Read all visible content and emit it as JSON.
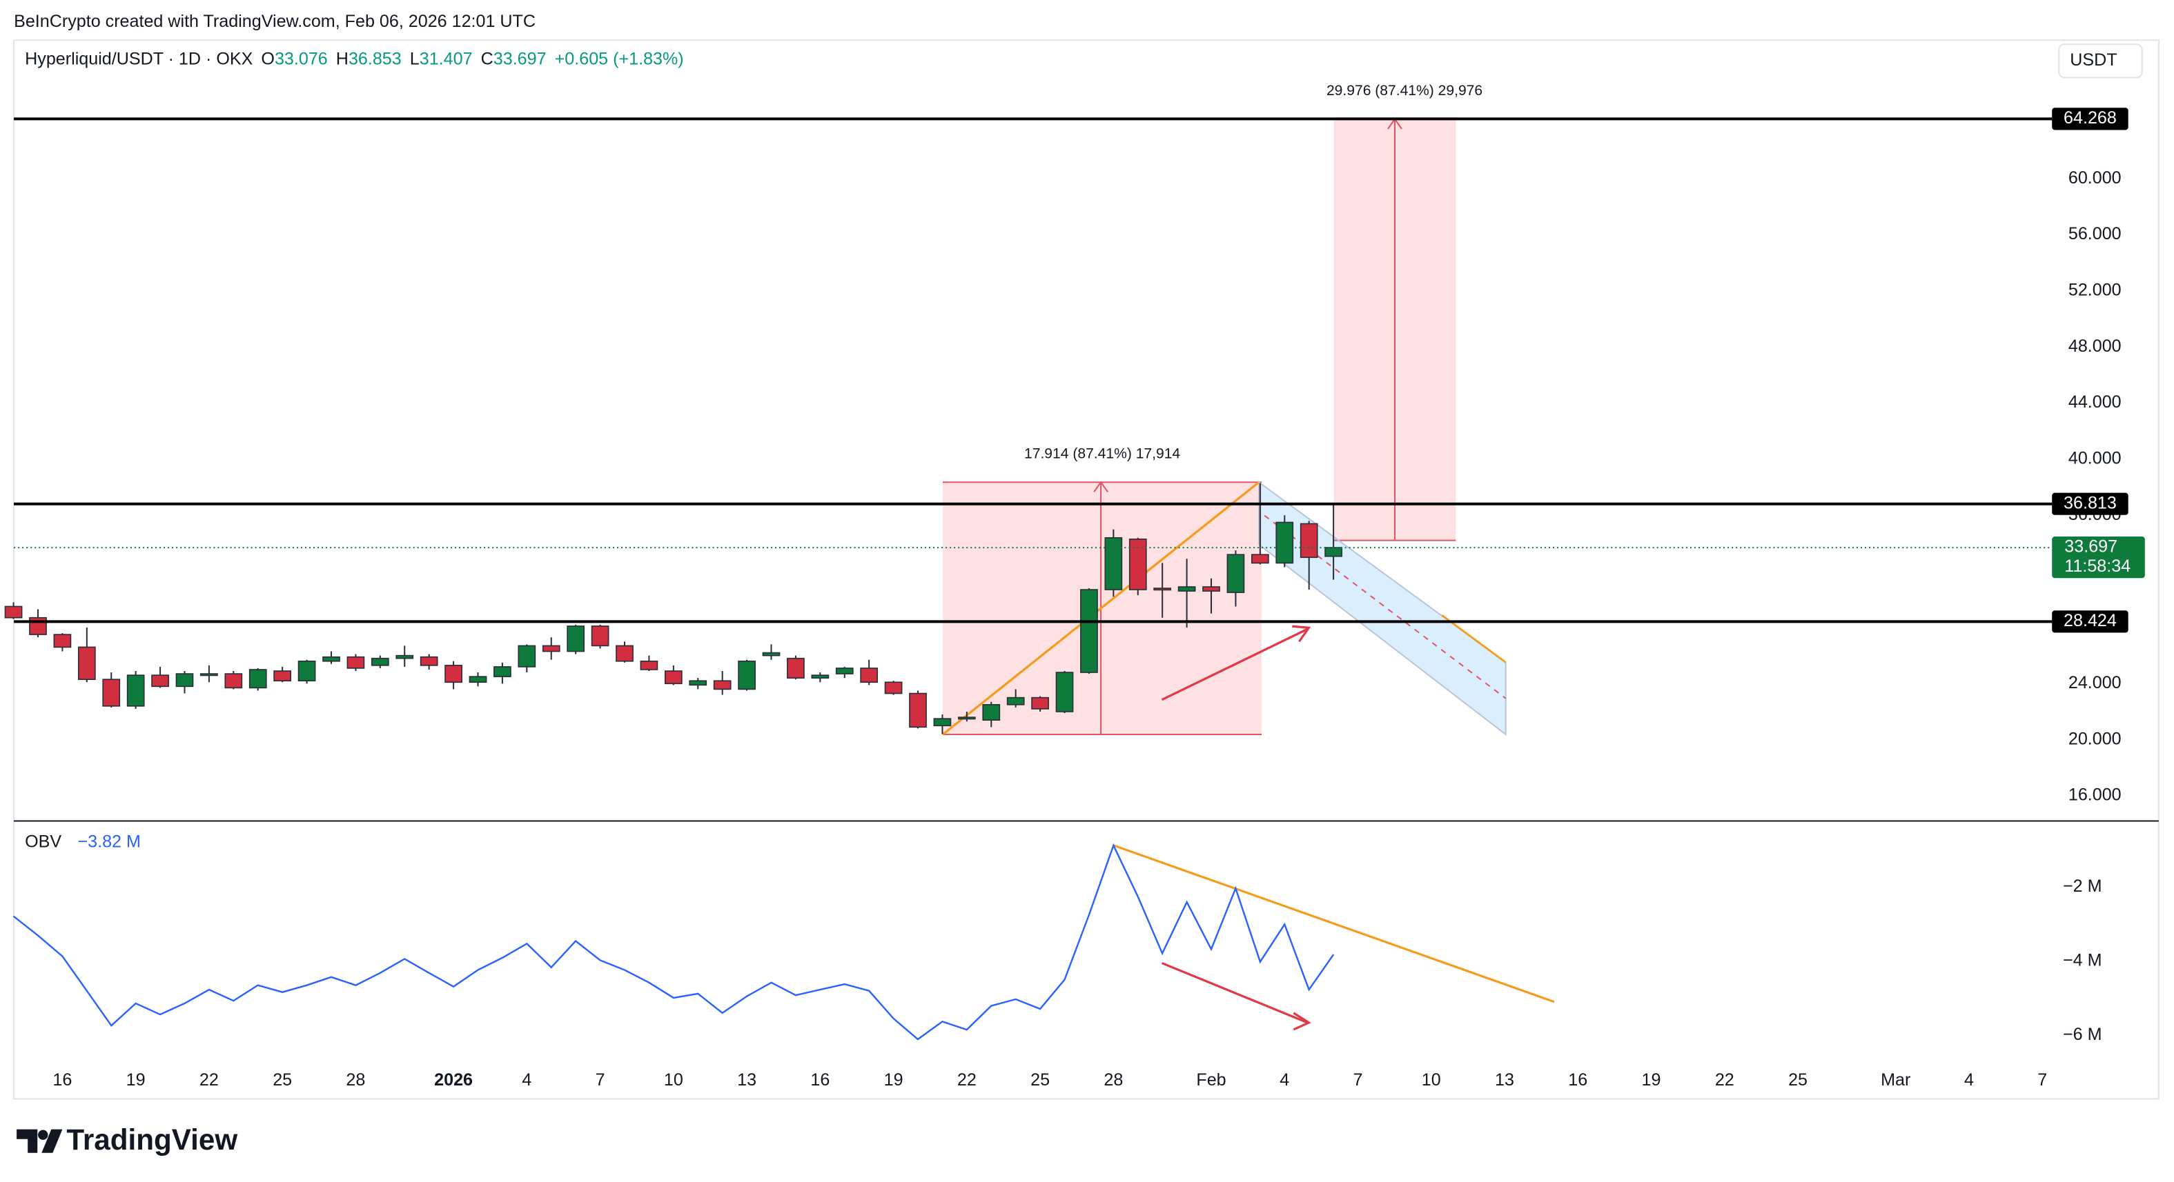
{
  "chart_data": {
    "type": "candlestick",
    "credit": "BeInCrypto created with TradingView.com, Feb 06, 2026 12:01 UTC",
    "symbol": "Hyperliquid/USDT · 1D · OKX",
    "ohlc_labels": [
      "O",
      "H",
      "L",
      "C"
    ],
    "change": "+0.605 (+1.83%)",
    "currency": "USDT",
    "countdown": "11:58:34",
    "logo": "TradingView",
    "categories": [
      null,
      null,
      "16",
      null,
      null,
      "19",
      null,
      null,
      "22",
      null,
      null,
      "25",
      null,
      null,
      "28",
      null,
      null,
      null,
      "2026",
      null,
      null,
      "4",
      null,
      null,
      "7",
      null,
      null,
      "10",
      null,
      null,
      "13",
      null,
      null,
      "16",
      null,
      null,
      "19",
      null,
      null,
      "22",
      null,
      null,
      "25",
      null,
      null,
      "28",
      null,
      null,
      null,
      "Feb",
      null,
      null,
      "4",
      null,
      null,
      "7",
      null,
      null,
      "10",
      null,
      null,
      "13",
      null,
      null,
      "16",
      null,
      null,
      "19",
      null,
      null,
      "22",
      null,
      null,
      "25",
      null,
      null,
      null,
      "Mar",
      null,
      null,
      "4",
      null,
      null,
      "7"
    ],
    "open": [
      29.5,
      28.7,
      27.5,
      26.6,
      24.3,
      22.4,
      24.6,
      23.8,
      24.6,
      24.7,
      23.7,
      24.9,
      24.2,
      25.6,
      25.9,
      25.3,
      25.8,
      25.9,
      25.3,
      24.1,
      24.5,
      25.2,
      26.7,
      26.3,
      28.1,
      26.7,
      25.6,
      24.9,
      23.9,
      24.2,
      23.6,
      26.0,
      25.8,
      24.4,
      24.7,
      25.1,
      24.1,
      23.3,
      21.0,
      21.5,
      21.4,
      22.5,
      23.0,
      22.0,
      24.8,
      30.7,
      34.3,
      30.8,
      30.6,
      30.9,
      30.5,
      33.2,
      32.6,
      35.4,
      33.076,
      null,
      null,
      null,
      null,
      null,
      null,
      null,
      null,
      null,
      null,
      null,
      null,
      null,
      null,
      null,
      null,
      null,
      null,
      null,
      null,
      null,
      null,
      null,
      null,
      null,
      null,
      null,
      null,
      null
    ],
    "high": [
      29.8,
      29.3,
      27.6,
      28.0,
      24.8,
      24.9,
      25.2,
      24.9,
      25.3,
      24.9,
      25.1,
      25.2,
      25.7,
      26.3,
      26.1,
      26.0,
      26.7,
      26.1,
      25.6,
      24.8,
      25.5,
      26.8,
      27.3,
      28.2,
      28.2,
      27.0,
      26.0,
      25.3,
      24.4,
      24.9,
      25.7,
      26.8,
      26.0,
      24.8,
      25.2,
      25.7,
      24.2,
      23.5,
      21.8,
      22.0,
      22.7,
      23.6,
      23.1,
      24.9,
      30.8,
      35.0,
      34.4,
      32.6,
      32.9,
      31.5,
      33.5,
      38.3,
      36.0,
      35.6,
      36.853,
      null,
      null,
      null,
      null,
      null,
      null,
      null,
      null,
      null,
      null,
      null,
      null,
      null,
      null,
      null,
      null,
      null,
      null,
      null,
      null,
      null,
      null,
      null,
      null,
      null,
      null,
      null,
      null,
      null
    ],
    "low": [
      28.6,
      27.3,
      26.3,
      24.1,
      22.3,
      22.2,
      23.7,
      23.3,
      24.1,
      23.6,
      23.5,
      24.1,
      24.0,
      25.4,
      24.9,
      25.1,
      25.2,
      25.0,
      23.6,
      23.8,
      24.0,
      24.8,
      25.7,
      26.1,
      26.5,
      25.5,
      24.9,
      23.9,
      23.6,
      23.2,
      23.5,
      25.7,
      24.3,
      24.1,
      24.4,
      23.9,
      23.2,
      20.8,
      20.4,
      21.3,
      20.9,
      22.3,
      22.0,
      21.9,
      24.7,
      30.2,
      30.3,
      28.7,
      28.0,
      29.0,
      29.5,
      32.5,
      32.3,
      30.7,
      31.407,
      null,
      null,
      null,
      null,
      null,
      null,
      null,
      null,
      null,
      null,
      null,
      null,
      null,
      null,
      null,
      null,
      null,
      null,
      null,
      null,
      null,
      null,
      null,
      null,
      null,
      null,
      null,
      null,
      null
    ],
    "close": [
      28.7,
      27.5,
      26.6,
      24.3,
      22.4,
      24.6,
      23.8,
      24.7,
      24.7,
      23.7,
      25.0,
      24.2,
      25.6,
      25.9,
      25.1,
      25.8,
      26.0,
      25.3,
      24.1,
      24.5,
      25.2,
      26.7,
      26.3,
      28.1,
      26.7,
      25.6,
      25.0,
      24.0,
      24.2,
      23.6,
      25.6,
      26.2,
      24.4,
      24.6,
      25.1,
      24.1,
      23.3,
      20.9,
      21.5,
      21.6,
      22.5,
      23.0,
      22.2,
      24.8,
      30.7,
      34.4,
      30.7,
      30.7,
      30.9,
      30.6,
      33.2,
      32.6,
      35.5,
      33.0,
      33.697,
      null,
      null,
      null,
      null,
      null,
      null,
      null,
      null,
      null,
      null,
      null,
      null,
      null,
      null,
      null,
      null,
      null,
      null,
      null,
      null,
      null,
      null,
      null,
      null,
      null,
      null,
      null,
      null,
      null
    ],
    "up_color": "#0e7a3c",
    "down_color": "#d12f3f",
    "ylim": [
      14.35,
      69.78
    ],
    "yticks": [
      {
        "value": 16,
        "label": "16.000"
      },
      {
        "value": 20,
        "label": "20.000"
      },
      {
        "value": 24,
        "label": "24.000"
      },
      {
        "value": 36,
        "label": "36.000"
      },
      {
        "value": 40,
        "label": "40.000"
      },
      {
        "value": 44,
        "label": "44.000"
      },
      {
        "value": 48,
        "label": "48.000"
      },
      {
        "value": 52,
        "label": "52.000"
      },
      {
        "value": 56,
        "label": "56.000"
      },
      {
        "value": 60,
        "label": "60.000"
      }
    ],
    "levels": [
      64.268,
      36.813,
      28.424
    ],
    "annotations": [
      "17.914 (87.41%) 17,914",
      "29.976 (87.41%) 29,976"
    ],
    "indicator": {
      "type": "line",
      "name": "OBV",
      "color": "#2962ff",
      "values": [
        -2.79,
        -3.31,
        -3.87,
        -4.8,
        -5.74,
        -5.14,
        -5.44,
        -5.14,
        -4.77,
        -5.07,
        -4.65,
        -4.84,
        -4.65,
        -4.43,
        -4.65,
        -4.32,
        -3.94,
        -4.32,
        -4.69,
        -4.24,
        -3.91,
        -3.53,
        -4.17,
        -3.46,
        -3.98,
        -4.24,
        -4.58,
        -4.99,
        -4.88,
        -5.4,
        -4.95,
        -4.58,
        -4.92,
        -4.77,
        -4.62,
        -4.8,
        -5.55,
        -6.11,
        -5.63,
        -5.85,
        -5.21,
        -5.03,
        -5.29,
        -4.5,
        -2.75,
        -0.88,
        -2.26,
        -3.79,
        -2.41,
        -3.68,
        -2.04,
        -4.02,
        -3.01,
        -4.77,
        -3.82,
        null,
        null,
        null,
        null,
        null,
        null,
        null,
        null,
        null,
        null,
        null,
        null,
        null,
        null,
        null,
        null,
        null,
        null,
        null,
        null,
        null,
        null,
        null,
        null,
        null,
        null,
        null,
        null,
        null
      ],
      "value_label": "−3.82 M",
      "ylim": [
        -6.67,
        -0.24
      ],
      "yticks": [
        {
          "value": -6,
          "label": "−6 M"
        },
        {
          "value": -4,
          "label": "−4 M"
        },
        {
          "value": -2,
          "label": "−2 M"
        }
      ]
    }
  }
}
